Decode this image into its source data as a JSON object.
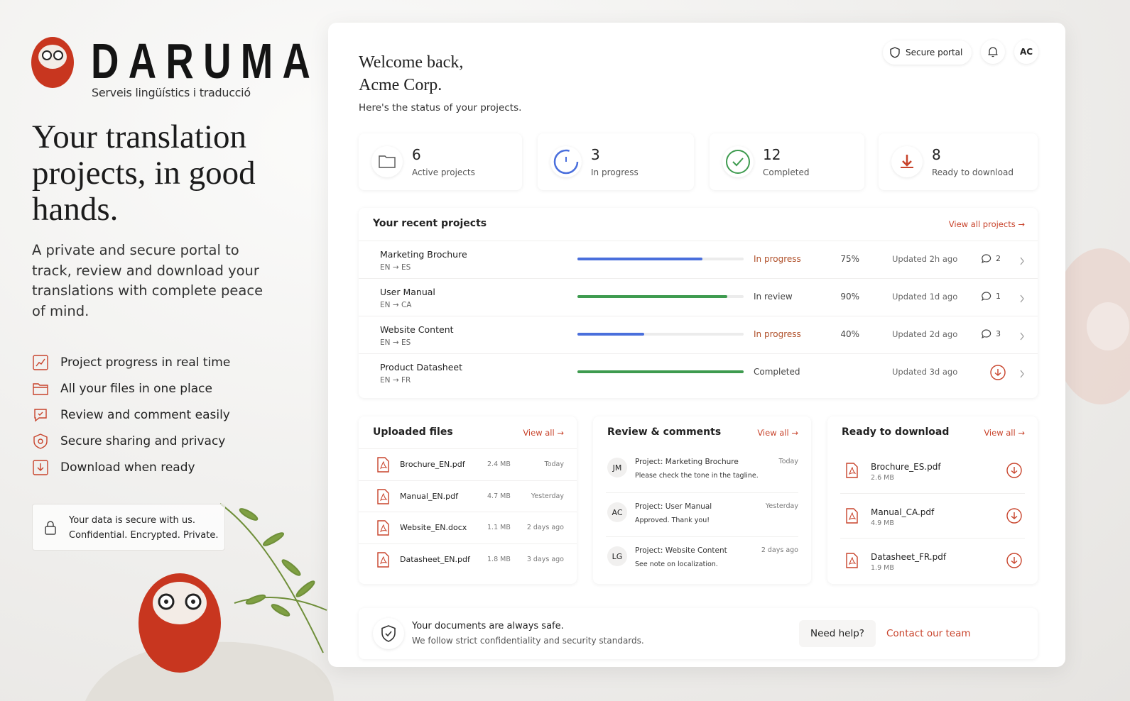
{
  "brand": {
    "name": "DARUMA",
    "tagline": "Serveis lingüístics i traducció"
  },
  "hero": {
    "title": "Your translation projects, in good hands.",
    "description": "A private and secure portal to track, review and download your translations with complete peace of mind."
  },
  "features": [
    "Project progress in real time",
    "All your files in one place",
    "Review and comment easily",
    "Secure sharing and privacy",
    "Download when ready"
  ],
  "security_note": {
    "title": "Your data is secure with us.",
    "text": "Confidential. Encrypted. Private."
  },
  "header": {
    "greeting": "Welcome back,",
    "company": "Acme Corp.",
    "subtitle": "Here's the status of your projects.",
    "secure": "Secure portal",
    "avatar": "AC"
  },
  "stats": [
    {
      "value": 6,
      "label": "Active projects"
    },
    {
      "value": 3,
      "label": "In progress"
    },
    {
      "value": 12,
      "label": "Completed"
    },
    {
      "value": 8,
      "label": "Ready to download"
    }
  ],
  "recent": {
    "title": "Your recent projects",
    "link": "View all projects →",
    "rows": [
      {
        "name": "Marketing Brochure",
        "langs": "EN → ES",
        "status": "In progress",
        "progress": 75,
        "progress_label": "75%",
        "updated": "Updated 2h ago",
        "comments": 2
      },
      {
        "name": "User Manual",
        "langs": "EN → CA",
        "status": "In review",
        "progress": 90,
        "progress_label": "90%",
        "updated": "Updated 1d ago",
        "comments": 1
      },
      {
        "name": "Website Content",
        "langs": "EN → ES",
        "status": "In progress",
        "progress": 40,
        "progress_label": "40%",
        "updated": "Updated 2d ago",
        "comments": 3
      },
      {
        "name": "Product Datasheet",
        "langs": "EN → FR",
        "status": "Completed",
        "progress": 100,
        "updated": "Updated 3d ago"
      }
    ]
  },
  "uploaded": {
    "title": "Uploaded files",
    "link": "View all →",
    "files": [
      {
        "name": "Brochure_EN.pdf",
        "size": "2.4 MB",
        "date": "Today"
      },
      {
        "name": "Manual_EN.pdf",
        "size": "4.7 MB",
        "date": "Yesterday"
      },
      {
        "name": "Website_EN.docx",
        "size": "1.1 MB",
        "date": "2 days ago"
      },
      {
        "name": "Datasheet_EN.pdf",
        "size": "1.8 MB",
        "date": "3 days ago"
      }
    ]
  },
  "reviews": {
    "title": "Review & comments",
    "link": "View all →",
    "items": [
      {
        "initials": "JM",
        "project": "Project: Marketing Brochure",
        "text": "Please check the tone in the tagline.",
        "date": "Today"
      },
      {
        "initials": "AC",
        "project": "Project: User Manual",
        "text": "Approved. Thank you!",
        "date": "Yesterday"
      },
      {
        "initials": "LG",
        "project": "Project: Website Content",
        "text": "See note on localization.",
        "date": "2 days ago"
      }
    ]
  },
  "ready": {
    "title": "Ready to download",
    "link": "View all →",
    "files": [
      {
        "name": "Brochure_ES.pdf",
        "size": "2.6 MB"
      },
      {
        "name": "Manual_CA.pdf",
        "size": "4.9 MB"
      },
      {
        "name": "Datasheet_FR.pdf",
        "size": "1.9 MB"
      }
    ]
  },
  "footer": {
    "title": "Your documents are always safe.",
    "text": "We follow strict confidentiality and security standards.",
    "help": "Need help?",
    "contact": "Contact our team"
  }
}
